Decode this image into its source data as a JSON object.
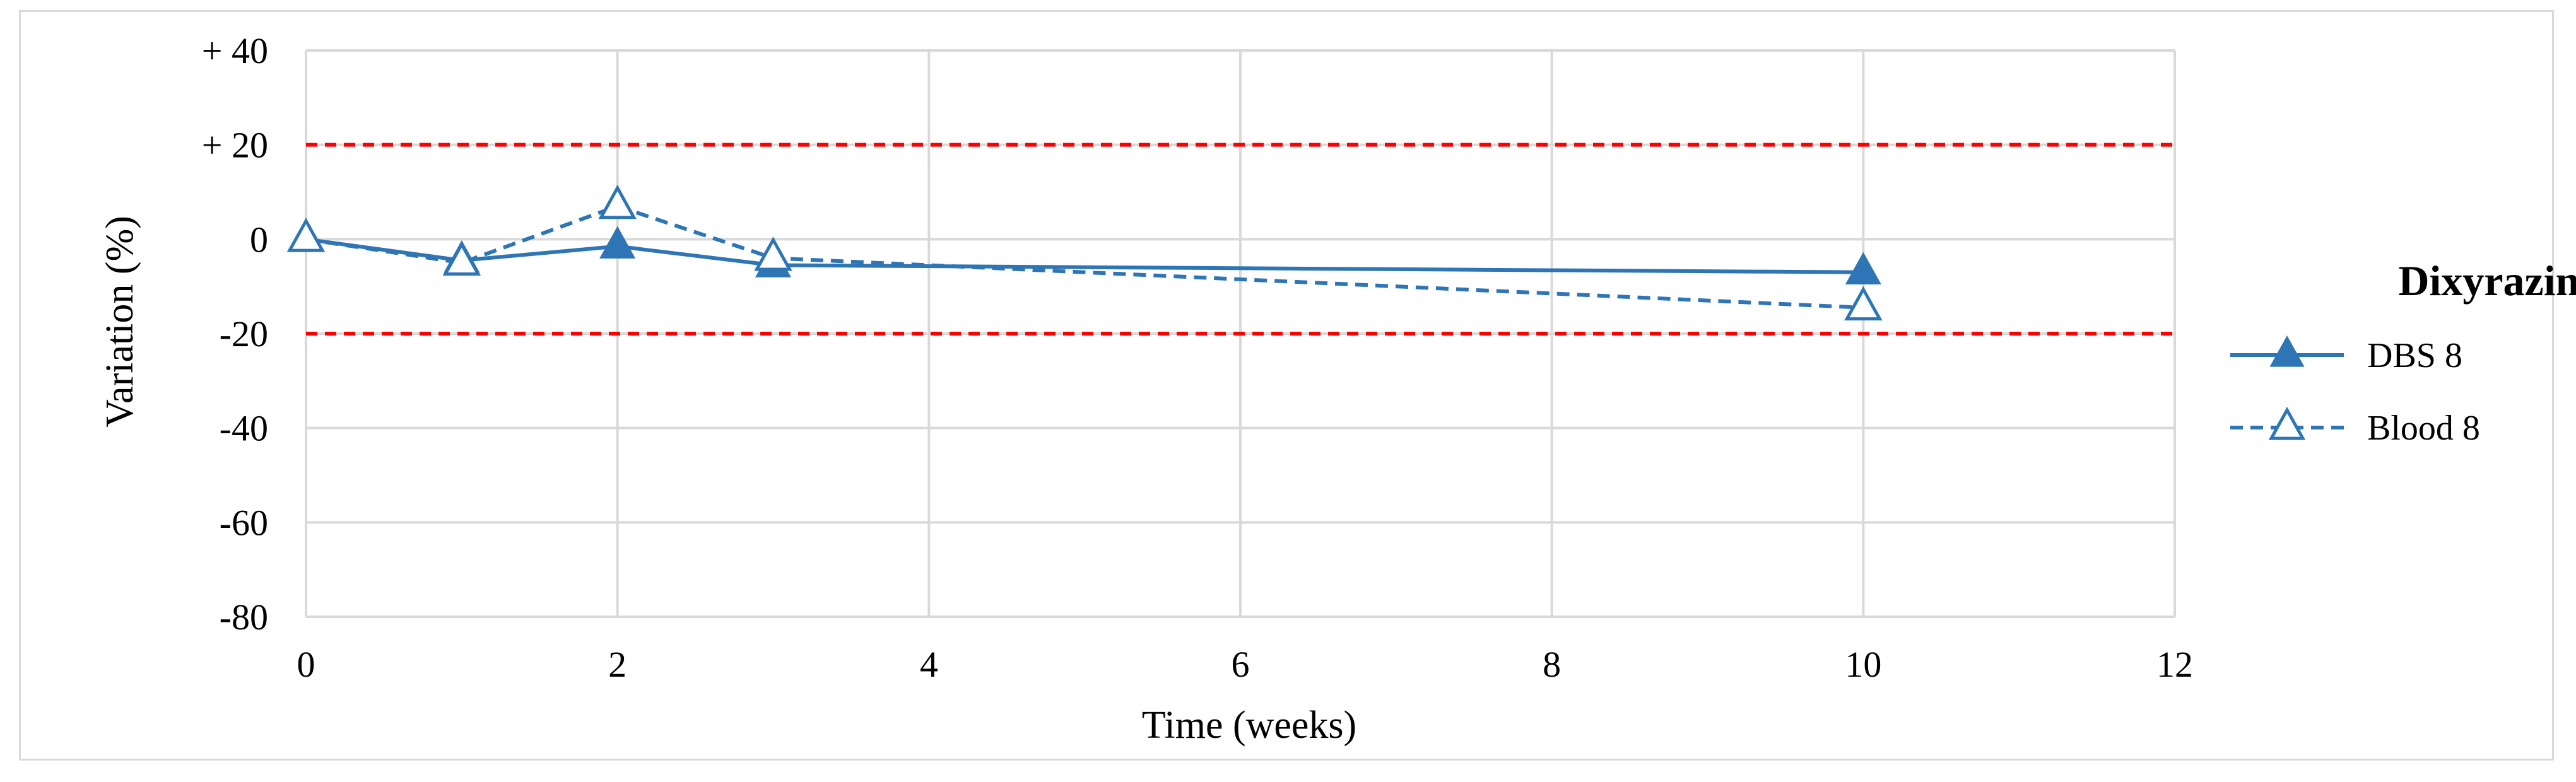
{
  "chart_data": {
    "type": "line",
    "title": "",
    "xlabel": "Time (weeks)",
    "ylabel": "Variation (%)",
    "xlim": [
      0,
      12
    ],
    "ylim": [
      -80,
      40
    ],
    "x_ticks": [
      0,
      2,
      4,
      6,
      8,
      10,
      12
    ],
    "x_tick_labels": [
      "0",
      "2",
      "4",
      "6",
      "8",
      "10",
      "12"
    ],
    "y_ticks": [
      40,
      20,
      0,
      -20,
      -40,
      -60,
      -80
    ],
    "y_tick_labels": [
      "+ 40",
      "+ 20",
      "0",
      "-20",
      "-40",
      "-60",
      "-80"
    ],
    "grid": true,
    "reference_lines": [
      {
        "y": 20,
        "color": "#ff0000",
        "style": "dashed"
      },
      {
        "y": -20,
        "color": "#ff0000",
        "style": "dashed"
      }
    ],
    "legend": {
      "title": "Dixyrazine",
      "position": "right"
    },
    "series": [
      {
        "name": "DBS 8",
        "x": [
          0,
          1,
          2,
          3,
          10
        ],
        "y": [
          0,
          -4.5,
          -1.5,
          -5.5,
          -7
        ],
        "color": "#2e75b6",
        "line_style": "solid",
        "marker": "filled-triangle"
      },
      {
        "name": "Blood 8",
        "x": [
          0,
          1,
          2,
          3,
          10
        ],
        "y": [
          0,
          -5,
          7,
          -4,
          -14.5
        ],
        "color": "#2e75b6",
        "line_style": "dashed",
        "marker": "open-triangle"
      }
    ]
  }
}
